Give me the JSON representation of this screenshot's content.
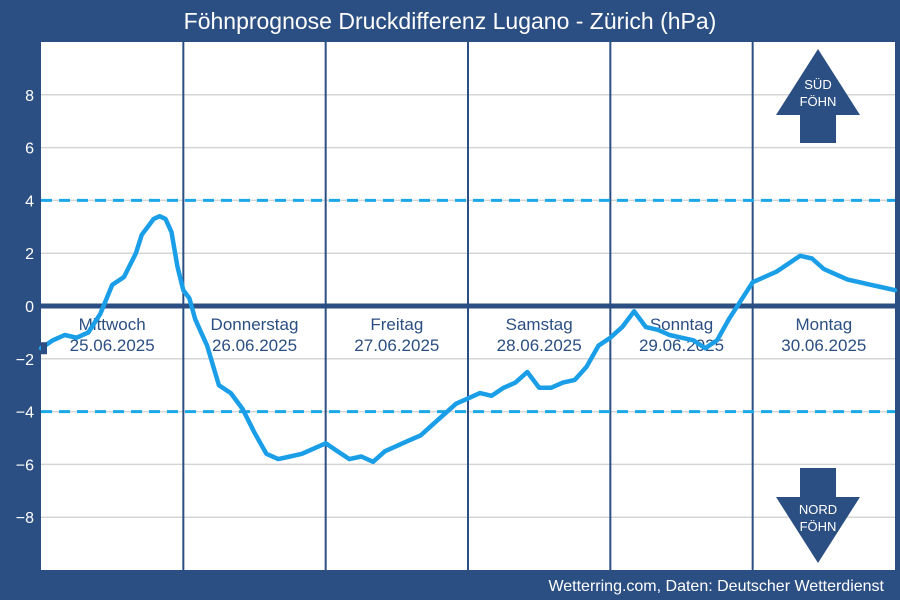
{
  "chart_data": {
    "type": "line",
    "title": "Föhnprognose Druckdifferenz Lugano - Zürich (hPa)",
    "ylim": [
      -10,
      10
    ],
    "yticks": [
      {
        "value": 8,
        "label": "8"
      },
      {
        "value": 6,
        "label": "6"
      },
      {
        "value": 4,
        "label": "4"
      },
      {
        "value": 2,
        "label": "2"
      },
      {
        "value": 0,
        "label": "0"
      },
      {
        "value": -2,
        "label": "−2"
      },
      {
        "value": -4,
        "label": "−4"
      },
      {
        "value": -6,
        "label": "−6"
      },
      {
        "value": -8,
        "label": "−8"
      }
    ],
    "thresholds": [
      4,
      -4
    ],
    "days": [
      {
        "name": "Mittwoch",
        "date": "25.06.2025"
      },
      {
        "name": "Donnerstag",
        "date": "26.06.2025"
      },
      {
        "name": "Freitag",
        "date": "27.06.2025"
      },
      {
        "name": "Samstag",
        "date": "28.06.2025"
      },
      {
        "name": "Sonntag",
        "date": "29.06.2025"
      },
      {
        "name": "Montag",
        "date": "30.06.2025"
      }
    ],
    "series": [
      {
        "x": [
          0,
          2,
          4,
          6,
          8,
          10,
          12,
          14,
          16,
          17,
          18,
          19,
          20,
          21,
          22,
          23,
          24,
          25,
          26,
          27,
          28,
          30,
          32,
          34,
          36,
          38,
          40,
          42,
          44,
          46,
          48,
          50,
          52,
          54,
          56,
          58,
          60,
          62,
          64,
          66,
          68,
          70,
          72,
          74,
          76,
          78,
          80,
          82,
          84,
          86,
          88,
          90,
          92,
          94,
          96,
          98,
          100,
          102,
          104,
          106,
          108,
          110,
          112,
          114,
          116,
          118,
          120,
          122,
          124,
          126,
          128,
          130,
          132,
          134,
          136,
          138,
          140,
          142,
          144
        ],
        "values": [
          -1.6,
          -1.3,
          -1.1,
          -1.2,
          -1.0,
          -0.3,
          0.8,
          1.1,
          2.0,
          2.7,
          3.0,
          3.3,
          3.4,
          3.3,
          2.8,
          1.5,
          0.6,
          0.3,
          -0.5,
          -1.0,
          -1.5,
          -3.0,
          -3.3,
          -3.9,
          -4.8,
          -5.6,
          -5.8,
          -5.7,
          -5.6,
          -5.4,
          -5.2,
          -5.5,
          -5.8,
          -5.7,
          -5.9,
          -5.5,
          -5.3,
          -5.1,
          -4.9,
          -4.5,
          -4.1,
          -3.7,
          -3.5,
          -3.3,
          -3.4,
          -3.1,
          -2.9,
          -2.5,
          -3.1,
          -3.1,
          -2.9,
          -2.8,
          -2.3,
          -1.5,
          -1.2,
          -0.8,
          -0.2,
          -0.8,
          -0.9,
          -1.1,
          -1.2,
          -1.3,
          -1.6,
          -1.3,
          -0.5,
          0.2,
          0.9,
          1.1,
          1.3,
          1.6,
          1.9,
          1.8,
          1.4,
          1.2,
          1.0,
          0.9,
          0.8,
          0.7,
          0.6
        ],
        "color": "#1a9ee8"
      }
    ],
    "arrow_up": {
      "line1": "SÜD",
      "line2": "FÖHN"
    },
    "arrow_down": {
      "line1": "NORD",
      "line2": "FÖHN"
    },
    "colors": {
      "background": "#2b4f82",
      "plot": "#ffffff",
      "line": "#1a9ee8",
      "threshold": "#1aa8e8",
      "grid": "#d5d5d5",
      "text": "#ffffff"
    }
  },
  "credit": "Wetterring.com, Daten: Deutscher Wetterdienst"
}
